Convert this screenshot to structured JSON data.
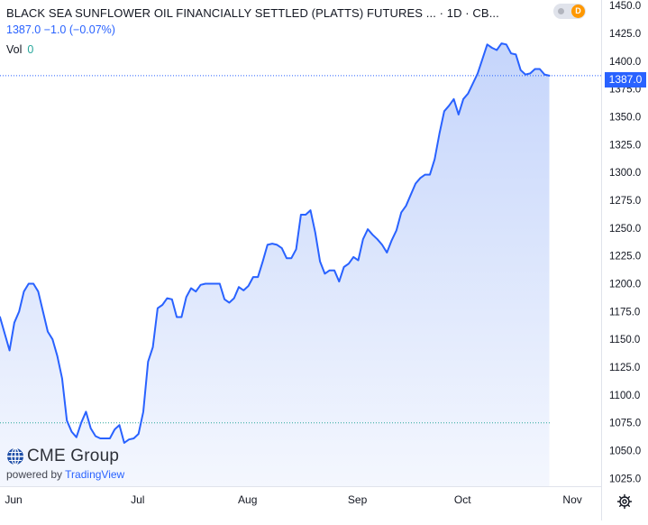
{
  "legend": {
    "title": "BLACK SEA SUNFLOWER OIL FINANCIALLY SETTLED (PLATTS) FUTURES ... · 1D · CB...",
    "quote": "1387.0 −1.0 (−0.07%)",
    "vol_label": "Vol",
    "vol_value": "0"
  },
  "interval_badge": "D",
  "last_price_label": "1387.0",
  "brand": {
    "name": "CME Group",
    "powered_by": "powered by",
    "tradingview": "TradingView"
  },
  "colors": {
    "line": "#2962ff",
    "area_top": "#c5d5fb",
    "area_bottom": "#f4f7fe",
    "axis_text": "#131722",
    "last_price_line": "#2962ff",
    "hline": "#26a69a"
  },
  "chart_data": {
    "type": "area",
    "title": "",
    "xlabel": "",
    "ylabel": "",
    "ylim": [
      1018,
      1455
    ],
    "y_ticks": [
      "1450.0",
      "1425.0",
      "1400.0",
      "1375.0",
      "1350.0",
      "1325.0",
      "1300.0",
      "1275.0",
      "1250.0",
      "1225.0",
      "1200.0",
      "1175.0",
      "1150.0",
      "1125.0",
      "1100.0",
      "1075.0",
      "1050.0",
      "1025.0"
    ],
    "x_ticks": [
      {
        "label": "Jun",
        "index": 0
      },
      {
        "label": "Jul",
        "index": 26
      },
      {
        "label": "Aug",
        "index": 49
      },
      {
        "label": "Sep",
        "index": 72
      },
      {
        "label": "Oct",
        "index": 94
      },
      {
        "label": "Nov",
        "index": 117
      }
    ],
    "last_price": 1387.0,
    "horizontal_line": 1075,
    "series": [
      {
        "values": [
          1170,
          1155,
          1140,
          1165,
          1175,
          1193,
          1200,
          1200,
          1193,
          1175,
          1157,
          1150,
          1135,
          1115,
          1077,
          1067,
          1062,
          1075,
          1085,
          1070,
          1063,
          1061,
          1061,
          1061,
          1069,
          1073,
          1057,
          1060,
          1061,
          1065,
          1085,
          1130,
          1143,
          1178,
          1181,
          1187,
          1186,
          1170,
          1170,
          1188,
          1196,
          1193,
          1199,
          1200,
          1200,
          1200,
          1200,
          1186,
          1183,
          1187,
          1197,
          1194,
          1198,
          1206,
          1206,
          1220,
          1235,
          1236,
          1235,
          1232,
          1223,
          1223,
          1231,
          1262,
          1262,
          1266,
          1246,
          1220,
          1209,
          1212,
          1212,
          1202,
          1215,
          1218,
          1224,
          1221,
          1240,
          1249,
          1244,
          1240,
          1235,
          1228,
          1239,
          1248,
          1264,
          1270,
          1280,
          1290,
          1295,
          1298,
          1298,
          1312,
          1335,
          1355,
          1360,
          1366,
          1352,
          1366,
          1371,
          1380,
          1389,
          1402,
          1415,
          1412,
          1410,
          1416,
          1415,
          1407,
          1406,
          1392,
          1388,
          1389,
          1393,
          1393,
          1388,
          1387
        ]
      }
    ]
  }
}
